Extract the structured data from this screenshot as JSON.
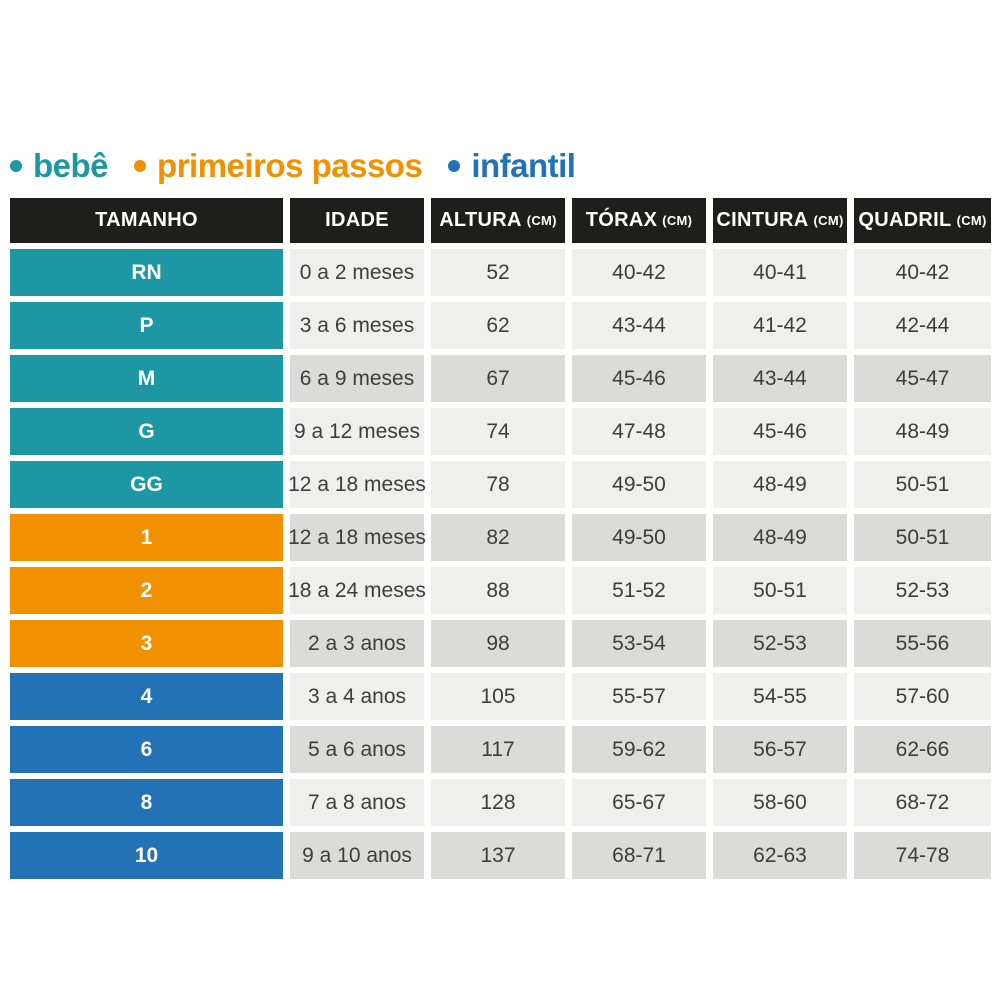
{
  "colors": {
    "teal": "#1E97A4",
    "orange": "#F29100",
    "blue": "#2272B5",
    "header_bg": "#1E1E1C",
    "row_light": "#EFEFED",
    "row_dark": "#DBDBD9",
    "cell_text": "#3D3D3B"
  },
  "legend": {
    "items": [
      {
        "id": "bebe",
        "label": "bebê",
        "color": "teal"
      },
      {
        "id": "primeiros-passos",
        "label": "primeiros passos",
        "color": "orange"
      },
      {
        "id": "infantil",
        "label": "infantil",
        "color": "blue"
      }
    ]
  },
  "chart_data": {
    "type": "table",
    "legend": [
      "bebê",
      "primeiros passos",
      "infantil"
    ],
    "columns": [
      {
        "id": "tamanho",
        "label": "TAMANHO",
        "unit": ""
      },
      {
        "id": "idade",
        "label": "IDADE",
        "unit": ""
      },
      {
        "id": "altura",
        "label": "ALTURA",
        "unit": "(CM)"
      },
      {
        "id": "torax",
        "label": "TÓRAX",
        "unit": "(CM)"
      },
      {
        "id": "cintura",
        "label": "CINTURA",
        "unit": "(CM)"
      },
      {
        "id": "quadril",
        "label": "QUADRIL",
        "unit": "(CM)"
      }
    ],
    "rows": [
      {
        "tamanho": "RN",
        "category": "teal",
        "shade": "light",
        "idade": "0 a 2 meses",
        "altura": "52",
        "torax": "40-42",
        "cintura": "40-41",
        "quadril": "40-42"
      },
      {
        "tamanho": "P",
        "category": "teal",
        "shade": "light",
        "idade": "3 a 6 meses",
        "altura": "62",
        "torax": "43-44",
        "cintura": "41-42",
        "quadril": "42-44"
      },
      {
        "tamanho": "M",
        "category": "teal",
        "shade": "dark",
        "idade": "6 a 9 meses",
        "altura": "67",
        "torax": "45-46",
        "cintura": "43-44",
        "quadril": "45-47"
      },
      {
        "tamanho": "G",
        "category": "teal",
        "shade": "light",
        "idade": "9 a 12 meses",
        "altura": "74",
        "torax": "47-48",
        "cintura": "45-46",
        "quadril": "48-49"
      },
      {
        "tamanho": "GG",
        "category": "teal",
        "shade": "light",
        "idade": "12 a 18 meses",
        "altura": "78",
        "torax": "49-50",
        "cintura": "48-49",
        "quadril": "50-51"
      },
      {
        "tamanho": "1",
        "category": "orange",
        "shade": "dark",
        "idade": "12 a 18 meses",
        "altura": "82",
        "torax": "49-50",
        "cintura": "48-49",
        "quadril": "50-51"
      },
      {
        "tamanho": "2",
        "category": "orange",
        "shade": "light",
        "idade": "18 a 24 meses",
        "altura": "88",
        "torax": "51-52",
        "cintura": "50-51",
        "quadril": "52-53"
      },
      {
        "tamanho": "3",
        "category": "orange",
        "shade": "dark",
        "idade": "2 a 3 anos",
        "altura": "98",
        "torax": "53-54",
        "cintura": "52-53",
        "quadril": "55-56"
      },
      {
        "tamanho": "4",
        "category": "blue",
        "shade": "light",
        "idade": "3 a 4 anos",
        "altura": "105",
        "torax": "55-57",
        "cintura": "54-55",
        "quadril": "57-60"
      },
      {
        "tamanho": "6",
        "category": "blue",
        "shade": "dark",
        "idade": "5 a 6 anos",
        "altura": "117",
        "torax": "59-62",
        "cintura": "56-57",
        "quadril": "62-66"
      },
      {
        "tamanho": "8",
        "category": "blue",
        "shade": "light",
        "idade": "7 a 8 anos",
        "altura": "128",
        "torax": "65-67",
        "cintura": "58-60",
        "quadril": "68-72"
      },
      {
        "tamanho": "10",
        "category": "blue",
        "shade": "dark",
        "idade": "9 a 10 anos",
        "altura": "137",
        "torax": "68-71",
        "cintura": "62-63",
        "quadril": "74-78"
      }
    ]
  }
}
